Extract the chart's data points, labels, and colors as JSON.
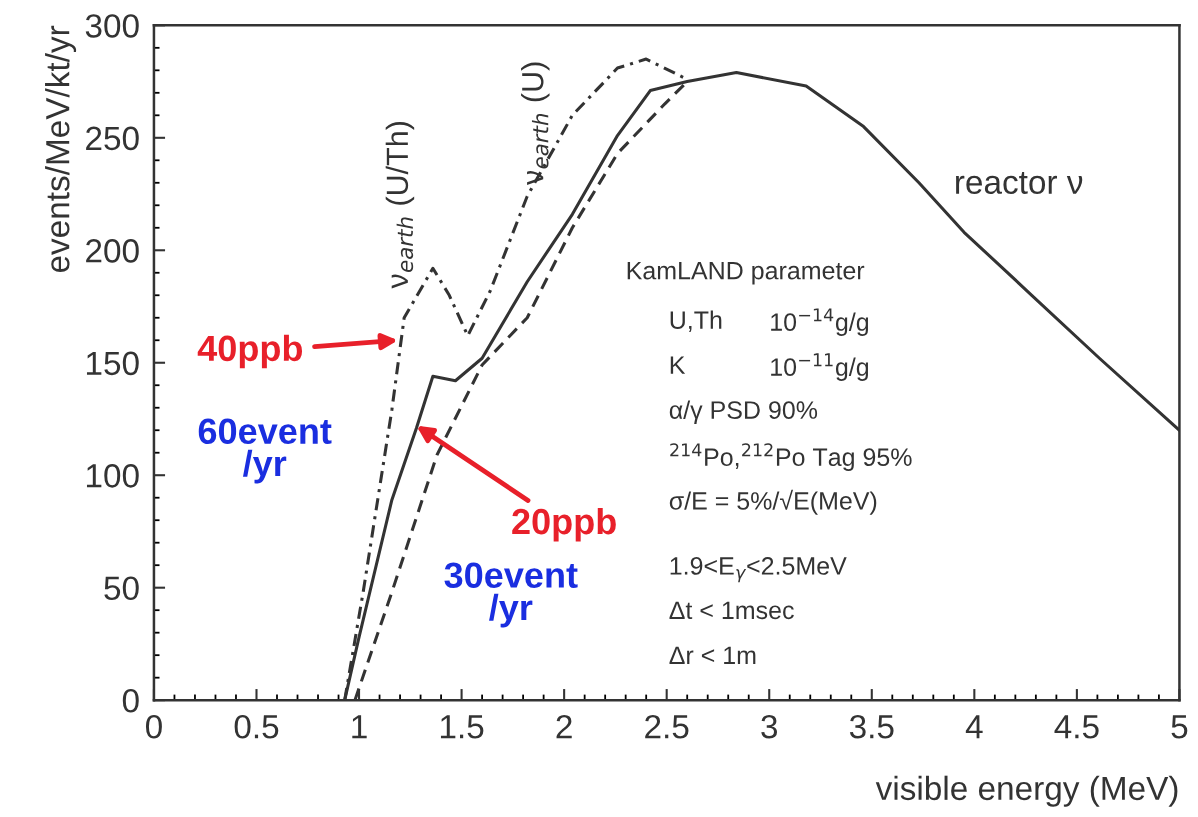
{
  "chart_data": {
    "type": "line",
    "xlabel": "visible energy (MeV)",
    "ylabel": "events/MeV/kt/yr",
    "xlim": [
      0,
      5
    ],
    "xticks": [
      0,
      0.5,
      1,
      1.5,
      2,
      2.5,
      3,
      3.5,
      4,
      4.5,
      5
    ],
    "ylim": [
      0,
      300
    ],
    "yticks": [
      0,
      50,
      100,
      150,
      200,
      250,
      300
    ],
    "grid": false,
    "legend": false,
    "marker": "none",
    "series": [
      {
        "color": "#333333",
        "line_style": "solid",
        "x": [
          0.93,
          1.0,
          1.16,
          1.28,
          1.36,
          1.47,
          1.6,
          1.82,
          2.04,
          2.26,
          2.42,
          2.6,
          2.84,
          3.18,
          3.46,
          3.73,
          3.95,
          4.28,
          4.61,
          5.0
        ],
        "values": [
          0,
          28,
          89,
          121,
          144,
          142,
          152,
          186,
          216,
          251,
          271,
          275,
          279,
          273,
          255,
          230,
          208,
          180,
          152,
          120
        ]
      },
      {
        "color": "#333333",
        "line_style": "dashdot",
        "x": [
          0.93,
          1.02,
          1.16,
          1.22,
          1.36,
          1.44,
          1.53,
          1.64,
          1.82,
          2.04,
          2.26,
          2.4,
          2.6
        ],
        "values": [
          0,
          48,
          129,
          170,
          192,
          180,
          162,
          182,
          224,
          260,
          281,
          285,
          276
        ]
      },
      {
        "color": "#333333",
        "line_style": "dashed",
        "x": [
          0.98,
          1.16,
          1.38,
          1.6,
          1.82,
          2.04,
          2.26,
          2.49,
          2.6
        ],
        "values": [
          0,
          48,
          109,
          149,
          170,
          210,
          243,
          265,
          275
        ]
      }
    ],
    "annotations": [
      "ν$_{earth}$ (U/Th)",
      "ν$_{earth}$ (U)",
      "reactor ν",
      "KamLAND parameter",
      "U,Th",
      "10$^{−14}$g/g",
      "K",
      "10$^{−11}$g/g",
      "α/γ PSD 90%",
      "$^{214}$Po,$^{212}$Po Tag 95%",
      "σ/E = 5%/√E(MeV)",
      "1.9<E$_{γ}$<2.5MeV",
      "Δt < 1msec",
      "Δr < 1m",
      {
        "text": "40ppb",
        "x": 1.19,
        "y": 160
      },
      "60event\n/yr",
      {
        "text": "20ppb",
        "x": 1.28,
        "y": 122
      },
      "30event\n/yr"
    ]
  }
}
